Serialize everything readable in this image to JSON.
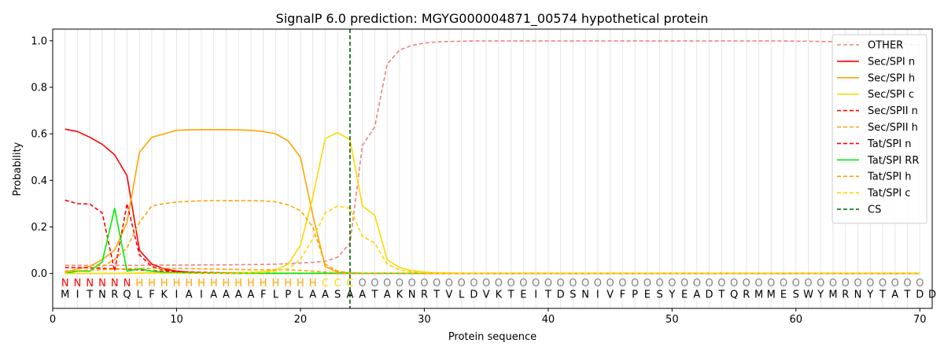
{
  "chart_data": {
    "type": "line",
    "title": "SignalP 6.0 prediction: MGYG000004871_00574 hypothetical protein",
    "xlabel": "Protein sequence",
    "ylabel": "Probability",
    "xlim": [
      0,
      71
    ],
    "ylim": [
      -0.15,
      1.05
    ],
    "xticks": [
      "0",
      "10",
      "20",
      "30",
      "40",
      "50",
      "60",
      "70"
    ],
    "yticks": [
      "0.0",
      "0.2",
      "0.4",
      "0.6",
      "0.8",
      "1.0"
    ],
    "legend_position": "top-right",
    "cleavage_site": 24,
    "sequence": [
      "M",
      "I",
      "T",
      "N",
      "R",
      "Q",
      "L",
      "F",
      "K",
      "I",
      "A",
      "I",
      "A",
      "A",
      "A",
      "A",
      "F",
      "L",
      "P",
      "L",
      "A",
      "A",
      "S",
      "A",
      "A",
      "T",
      "A",
      "K",
      "N",
      "R",
      "T",
      "V",
      "L",
      "D",
      "V",
      "K",
      "T",
      "E",
      "I",
      "T",
      "D",
      "S",
      "N",
      "I",
      "V",
      "F",
      "P",
      "E",
      "S",
      "Y",
      "E",
      "A",
      "D",
      "T",
      "Q",
      "R",
      "M",
      "M",
      "E",
      "S",
      "W",
      "Y",
      "M",
      "R",
      "N",
      "Y",
      "T",
      "A",
      "T",
      "D",
      "D"
    ],
    "labels": [
      "N",
      "N",
      "N",
      "N",
      "N",
      "N",
      "H",
      "H",
      "H",
      "H",
      "H",
      "H",
      "H",
      "H",
      "H",
      "H",
      "H",
      "H",
      "H",
      "H",
      "H",
      "C",
      "C",
      "C",
      "O",
      "O",
      "O",
      "O",
      "O",
      "O",
      "O",
      "O",
      "O",
      "O",
      "O",
      "O",
      "O",
      "O",
      "O",
      "O",
      "O",
      "O",
      "O",
      "O",
      "O",
      "O",
      "O",
      "O",
      "O",
      "O",
      "O",
      "O",
      "O",
      "O",
      "O",
      "O",
      "O",
      "O",
      "O",
      "O",
      "O",
      "O",
      "O",
      "O",
      "O",
      "O",
      "O",
      "O",
      "O",
      "O"
    ],
    "label_colors": {
      "N": "#ff0000",
      "H": "#ffa500",
      "C": "#ffd700",
      "O": "#808080"
    },
    "series": [
      {
        "name": "OTHER",
        "color": "#f08080",
        "dash": true,
        "values": [
          0.035,
          0.035,
          0.035,
          0.035,
          0.035,
          0.035,
          0.035,
          0.036,
          0.036,
          0.036,
          0.036,
          0.037,
          0.037,
          0.037,
          0.038,
          0.038,
          0.039,
          0.04,
          0.042,
          0.045,
          0.048,
          0.052,
          0.07,
          0.13,
          0.55,
          0.63,
          0.9,
          0.96,
          0.98,
          0.99,
          0.995,
          0.997,
          0.998,
          0.999,
          0.999,
          0.999,
          0.999,
          0.999,
          0.999,
          0.999,
          0.999,
          0.999,
          0.999,
          0.999,
          0.999,
          0.999,
          0.999,
          0.999,
          0.999,
          0.999,
          0.999,
          0.999,
          0.999,
          0.999,
          0.999,
          0.999,
          0.999,
          0.999,
          0.999,
          0.998,
          0.998,
          0.997,
          0.996,
          0.995,
          0.994,
          0.993,
          0.992,
          0.99,
          0.985,
          0.98
        ]
      },
      {
        "name": "Sec/SPI n",
        "color": "#ff0000",
        "dash": false,
        "values": [
          0.62,
          0.61,
          0.585,
          0.555,
          0.51,
          0.42,
          0.1,
          0.04,
          0.02,
          0.01,
          0.005,
          0.003,
          0.002,
          0.001,
          0.001,
          0.001,
          0.001,
          0.001,
          0.001,
          0.001,
          0.001,
          0.001,
          0.001,
          0.001,
          0.001,
          0.001,
          0.001,
          0.001,
          0.001,
          0.001,
          0.001,
          0.001,
          0.001,
          0.001,
          0.001,
          0.001,
          0.001,
          0.001,
          0.001,
          0.001,
          0.001,
          0.001,
          0.001,
          0.001,
          0.001,
          0.001,
          0.001,
          0.001,
          0.001,
          0.001,
          0.001,
          0.001,
          0.001,
          0.001,
          0.001,
          0.001,
          0.001,
          0.001,
          0.001,
          0.001,
          0.001,
          0.001,
          0.001,
          0.001,
          0.001,
          0.001,
          0.001,
          0.001,
          0.001,
          0.001
        ]
      },
      {
        "name": "Sec/SPI h",
        "color": "#ffa500",
        "dash": false,
        "values": [
          0.005,
          0.02,
          0.03,
          0.06,
          0.1,
          0.22,
          0.52,
          0.585,
          0.6,
          0.615,
          0.617,
          0.618,
          0.618,
          0.618,
          0.617,
          0.615,
          0.61,
          0.6,
          0.57,
          0.5,
          0.25,
          0.03,
          0.005,
          0.002,
          0.001,
          0.001,
          0.001,
          0.001,
          0.001,
          0.001,
          0.001,
          0.001,
          0.001,
          0.001,
          0.001,
          0.001,
          0.001,
          0.001,
          0.001,
          0.001,
          0.001,
          0.001,
          0.001,
          0.001,
          0.001,
          0.001,
          0.001,
          0.001,
          0.001,
          0.001,
          0.001,
          0.001,
          0.001,
          0.001,
          0.001,
          0.001,
          0.001,
          0.001,
          0.001,
          0.001,
          0.001,
          0.001,
          0.001,
          0.001,
          0.001,
          0.001,
          0.001,
          0.001,
          0.001,
          0.001
        ]
      },
      {
        "name": "Sec/SPI c",
        "color": "#ffd700",
        "dash": false,
        "values": [
          0.0,
          0.0,
          0.0,
          0.0,
          0.0,
          0.001,
          0.002,
          0.003,
          0.003,
          0.003,
          0.003,
          0.003,
          0.003,
          0.003,
          0.004,
          0.005,
          0.008,
          0.015,
          0.04,
          0.12,
          0.33,
          0.58,
          0.605,
          0.575,
          0.29,
          0.25,
          0.06,
          0.025,
          0.012,
          0.006,
          0.003,
          0.002,
          0.001,
          0.001,
          0.001,
          0.001,
          0.001,
          0.001,
          0.001,
          0.001,
          0.001,
          0.001,
          0.001,
          0.001,
          0.001,
          0.001,
          0.001,
          0.001,
          0.001,
          0.001,
          0.001,
          0.001,
          0.001,
          0.001,
          0.001,
          0.001,
          0.001,
          0.001,
          0.001,
          0.001,
          0.001,
          0.001,
          0.001,
          0.001,
          0.001,
          0.001,
          0.001,
          0.001,
          0.001,
          0.001
        ]
      },
      {
        "name": "Sec/SPII n",
        "color": "#ff0000",
        "dash": true,
        "values": [
          0.315,
          0.3,
          0.298,
          0.26,
          0.01,
          0.3,
          0.08,
          0.03,
          0.015,
          0.008,
          0.005,
          0.003,
          0.002,
          0.001,
          0.001,
          0.001,
          0.001,
          0.001,
          0.001,
          0.001,
          0.001,
          0.001,
          0.001,
          0.001,
          0.001,
          0.001,
          0.001,
          0.001,
          0.001,
          0.001,
          0.001,
          0.001,
          0.001,
          0.001,
          0.001,
          0.001,
          0.001,
          0.001,
          0.001,
          0.001,
          0.001,
          0.001,
          0.001,
          0.001,
          0.001,
          0.001,
          0.001,
          0.001,
          0.001,
          0.001,
          0.001,
          0.001,
          0.001,
          0.001,
          0.001,
          0.001,
          0.001,
          0.001,
          0.001,
          0.001,
          0.001,
          0.001,
          0.001,
          0.001,
          0.001,
          0.001,
          0.001,
          0.001,
          0.001,
          0.001
        ]
      },
      {
        "name": "Sec/SPII h",
        "color": "#ffa500",
        "dash": true,
        "values": [
          0.005,
          0.01,
          0.015,
          0.03,
          0.06,
          0.11,
          0.22,
          0.29,
          0.3,
          0.307,
          0.31,
          0.312,
          0.313,
          0.313,
          0.313,
          0.313,
          0.312,
          0.308,
          0.295,
          0.27,
          0.2,
          0.04,
          0.01,
          0.003,
          0.001,
          0.001,
          0.001,
          0.001,
          0.001,
          0.001,
          0.001,
          0.001,
          0.001,
          0.001,
          0.001,
          0.001,
          0.001,
          0.001,
          0.001,
          0.001,
          0.001,
          0.001,
          0.001,
          0.001,
          0.001,
          0.001,
          0.001,
          0.001,
          0.001,
          0.001,
          0.001,
          0.001,
          0.001,
          0.001,
          0.001,
          0.001,
          0.001,
          0.001,
          0.001,
          0.001,
          0.001,
          0.001,
          0.001,
          0.001,
          0.001,
          0.001,
          0.001,
          0.001,
          0.001,
          0.001
        ]
      },
      {
        "name": "Tat/SPI n",
        "color": "#ff0000",
        "dash": true,
        "values": [
          0.025,
          0.025,
          0.024,
          0.022,
          0.02,
          0.018,
          0.015,
          0.012,
          0.01,
          0.008,
          0.006,
          0.005,
          0.004,
          0.003,
          0.002,
          0.002,
          0.001,
          0.001,
          0.001,
          0.001,
          0.001,
          0.001,
          0.001,
          0.001,
          0.001,
          0.001,
          0.001,
          0.001,
          0.001,
          0.001,
          0.001,
          0.001,
          0.001,
          0.001,
          0.001,
          0.001,
          0.001,
          0.001,
          0.001,
          0.001,
          0.001,
          0.001,
          0.001,
          0.001,
          0.001,
          0.001,
          0.001,
          0.001,
          0.001,
          0.001,
          0.001,
          0.001,
          0.001,
          0.001,
          0.001,
          0.001,
          0.001,
          0.001,
          0.001,
          0.001,
          0.001,
          0.001,
          0.001,
          0.001,
          0.001,
          0.001,
          0.001,
          0.001,
          0.001,
          0.001
        ]
      },
      {
        "name": "Tat/SPI RR",
        "color": "#00ee00",
        "dash": false,
        "values": [
          0.0,
          0.01,
          0.01,
          0.05,
          0.28,
          0.01,
          0.02,
          0.01,
          0.005,
          0.003,
          0.002,
          0.001,
          0.001,
          0.001,
          0.001,
          0.001,
          0.001,
          0.001,
          0.001,
          0.001,
          0.001,
          0.001,
          0.001,
          0.001,
          0.001,
          0.001,
          0.001,
          0.001,
          0.001,
          0.001,
          0.001,
          0.001,
          0.001,
          0.001,
          0.001,
          0.001,
          0.001,
          0.001,
          0.001,
          0.001,
          0.001,
          0.001,
          0.001,
          0.001,
          0.001,
          0.001,
          0.001,
          0.001,
          0.001,
          0.001,
          0.001,
          0.001,
          0.001,
          0.001,
          0.001,
          0.001,
          0.001,
          0.001,
          0.001,
          0.001,
          0.001,
          0.001,
          0.001,
          0.001,
          0.001,
          0.001,
          0.001,
          0.001,
          0.001,
          0.001
        ]
      },
      {
        "name": "Tat/SPI h",
        "color": "#ffa500",
        "dash": true,
        "values": [
          0.01,
          0.012,
          0.014,
          0.016,
          0.018,
          0.02,
          0.022,
          0.022,
          0.022,
          0.022,
          0.021,
          0.02,
          0.019,
          0.018,
          0.017,
          0.016,
          0.016,
          0.016,
          0.015,
          0.013,
          0.01,
          0.006,
          0.003,
          0.002,
          0.001,
          0.001,
          0.001,
          0.001,
          0.001,
          0.001,
          0.001,
          0.001,
          0.001,
          0.001,
          0.001,
          0.001,
          0.001,
          0.001,
          0.001,
          0.001,
          0.001,
          0.001,
          0.001,
          0.001,
          0.001,
          0.001,
          0.001,
          0.001,
          0.001,
          0.001,
          0.001,
          0.001,
          0.001,
          0.001,
          0.001,
          0.001,
          0.001,
          0.001,
          0.001,
          0.001,
          0.001,
          0.001,
          0.001,
          0.001,
          0.001,
          0.001,
          0.001,
          0.001,
          0.001,
          0.001
        ]
      },
      {
        "name": "Tat/SPI c",
        "color": "#ffd700",
        "dash": true,
        "values": [
          0.0,
          0.0,
          0.0,
          0.0,
          0.0,
          0.0,
          0.001,
          0.001,
          0.001,
          0.001,
          0.001,
          0.001,
          0.001,
          0.001,
          0.002,
          0.003,
          0.005,
          0.01,
          0.02,
          0.06,
          0.15,
          0.26,
          0.29,
          0.28,
          0.16,
          0.13,
          0.04,
          0.015,
          0.007,
          0.003,
          0.002,
          0.001,
          0.001,
          0.001,
          0.001,
          0.001,
          0.001,
          0.001,
          0.001,
          0.001,
          0.001,
          0.001,
          0.001,
          0.001,
          0.001,
          0.001,
          0.001,
          0.001,
          0.001,
          0.001,
          0.001,
          0.001,
          0.001,
          0.001,
          0.001,
          0.001,
          0.001,
          0.001,
          0.001,
          0.001,
          0.001,
          0.001,
          0.001,
          0.001,
          0.001,
          0.001,
          0.001,
          0.001,
          0.001,
          0.001
        ]
      }
    ],
    "cs_legend": {
      "name": "CS",
      "color": "#006400",
      "dash": true
    }
  }
}
